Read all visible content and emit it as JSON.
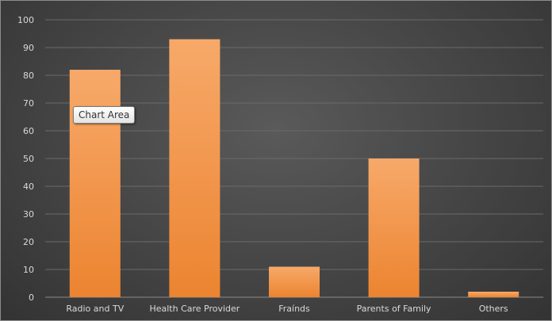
{
  "tooltip": {
    "text": "Chart Area"
  },
  "colors": {
    "bar": "#f0913f",
    "bar_light": "#f7a96a",
    "bar_dark": "#ec8430"
  },
  "chart_data": {
    "type": "bar",
    "categories": [
      "Radio and TV",
      "Health Care Provider",
      "Fraínds",
      "Parents of Family",
      "Others"
    ],
    "values": [
      82,
      93,
      11,
      50,
      2
    ],
    "title": "",
    "xlabel": "",
    "ylabel": "",
    "ylim": [
      0,
      100
    ],
    "yticks": [
      0,
      10,
      20,
      30,
      40,
      50,
      60,
      70,
      80,
      90,
      100
    ],
    "grid": true,
    "legend": "none"
  }
}
